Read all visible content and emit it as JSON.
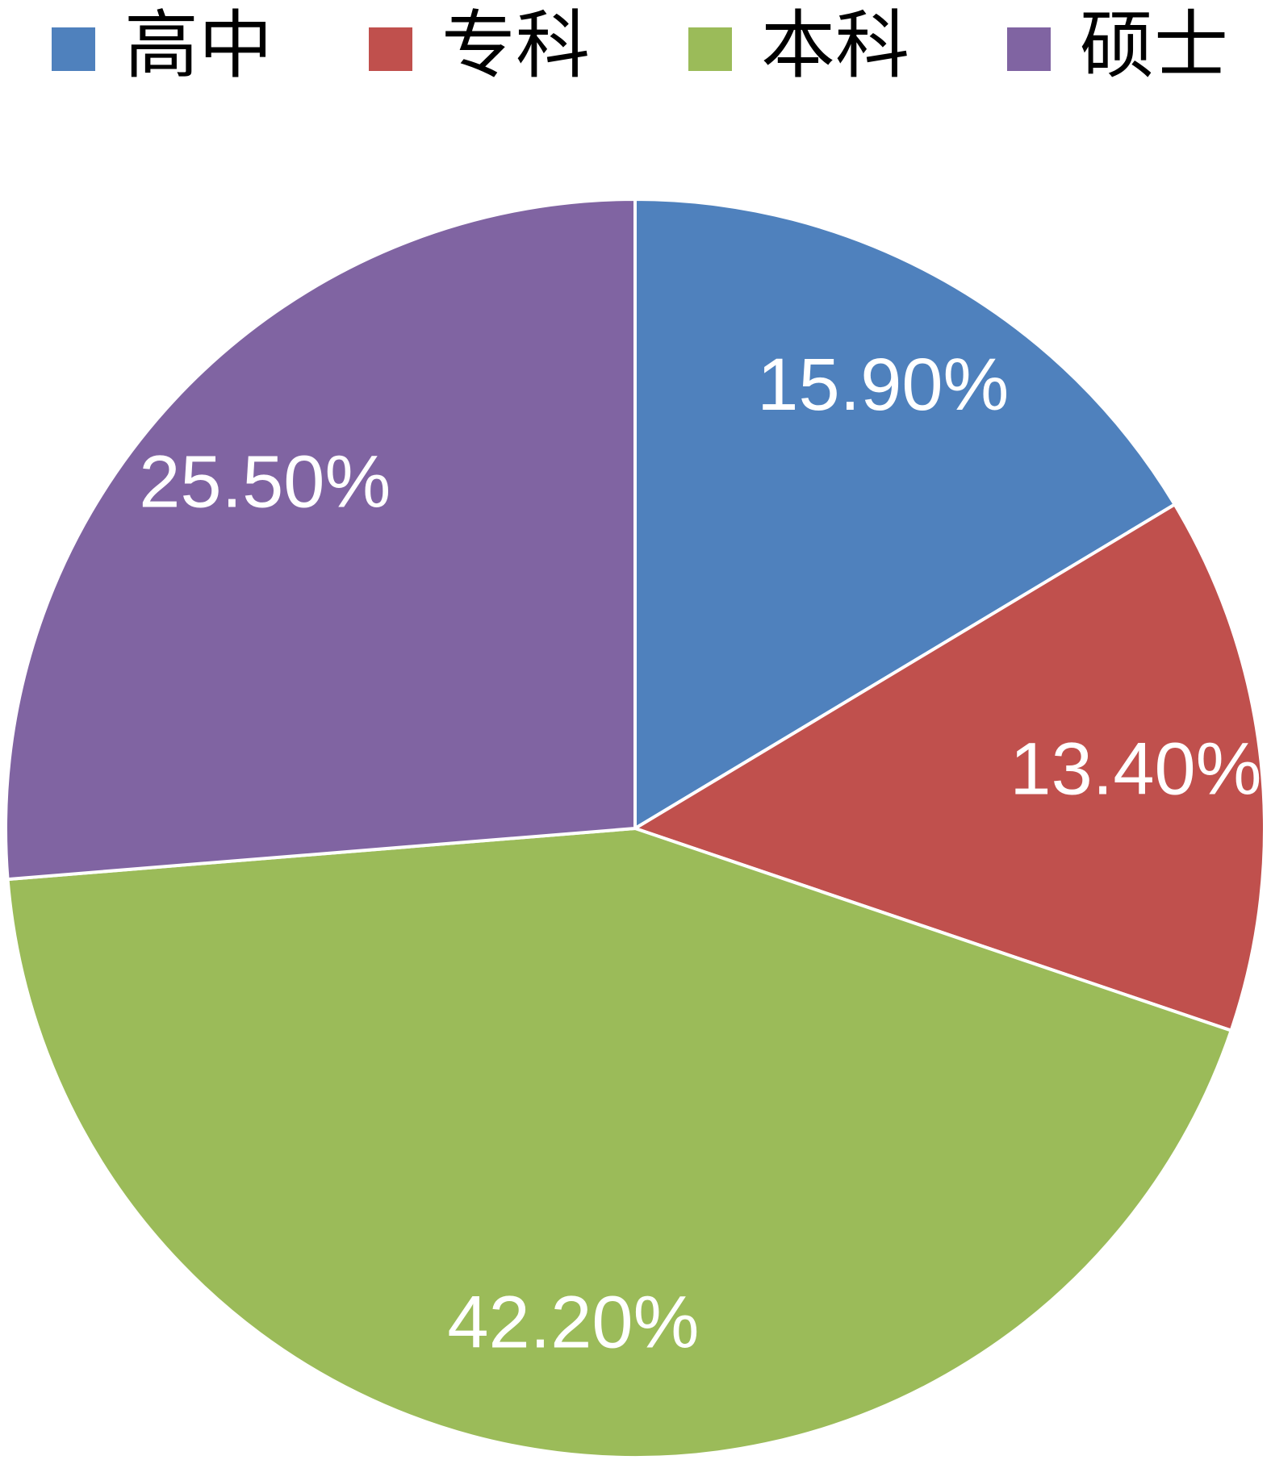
{
  "chart_data": {
    "type": "pie",
    "categories": [
      "高中",
      "专科",
      "本科",
      "硕士"
    ],
    "values": [
      15.9,
      13.4,
      42.2,
      25.5
    ],
    "value_labels": [
      "15.90%",
      "13.40%",
      "42.20%",
      "25.50%"
    ],
    "colors": [
      "#4f81bd",
      "#c0504d",
      "#9bbb59",
      "#8064a2"
    ],
    "legend": "top"
  }
}
